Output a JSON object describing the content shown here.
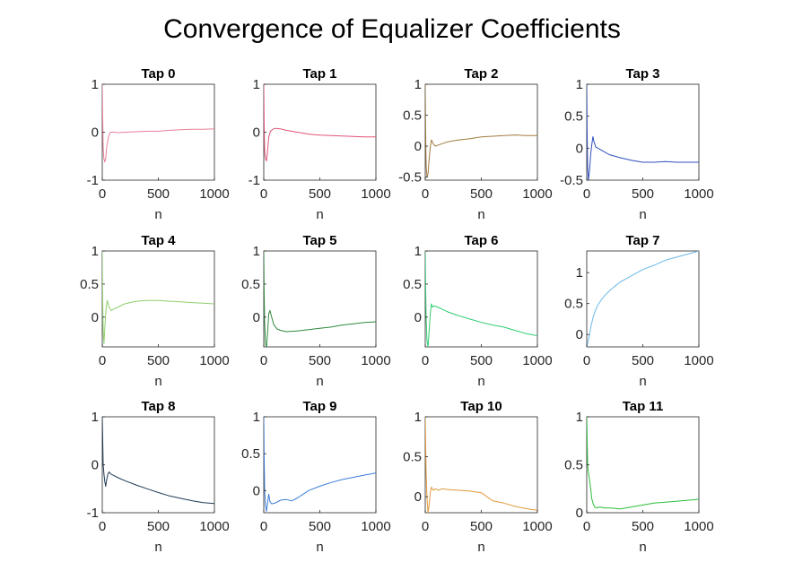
{
  "figure": {
    "title": "Convergence of Equalizer Coefficients"
  },
  "chart_data": [
    {
      "type": "line",
      "title": "Tap 0",
      "xlabel": "n",
      "ylabel": "",
      "xlim": [
        0,
        1000
      ],
      "ylim": [
        -1,
        1
      ],
      "xticks": [
        0,
        500,
        1000
      ],
      "yticks": [
        -1,
        0,
        1
      ],
      "ytick_labels": [
        "-1",
        "0",
        "1"
      ],
      "color": "#e8819a",
      "x": [
        0,
        3,
        8,
        14,
        22,
        30,
        40,
        55,
        70,
        100,
        150,
        200,
        300,
        400,
        500,
        600,
        700,
        800,
        900,
        1000
      ],
      "y": [
        1.0,
        0.4,
        -0.3,
        -0.55,
        -0.62,
        -0.55,
        -0.3,
        -0.1,
        0.0,
        0.0,
        -0.01,
        0.0,
        0.01,
        0.02,
        0.02,
        0.04,
        0.05,
        0.06,
        0.06,
        0.07
      ]
    },
    {
      "type": "line",
      "title": "Tap 1",
      "xlabel": "n",
      "ylabel": "",
      "xlim": [
        0,
        1000
      ],
      "ylim": [
        -1,
        1
      ],
      "xticks": [
        0,
        500,
        1000
      ],
      "yticks": [
        -1,
        0,
        1
      ],
      "ytick_labels": [
        "-1",
        "0",
        "1"
      ],
      "color": "#e05277",
      "x": [
        0,
        3,
        8,
        15,
        25,
        35,
        45,
        60,
        80,
        100,
        150,
        200,
        300,
        400,
        500,
        600,
        700,
        800,
        900,
        1000
      ],
      "y": [
        1.0,
        0.2,
        -0.4,
        -0.55,
        -0.6,
        -0.35,
        -0.1,
        0.02,
        0.06,
        0.08,
        0.07,
        0.04,
        0.0,
        -0.04,
        -0.06,
        -0.07,
        -0.08,
        -0.09,
        -0.1,
        -0.1
      ]
    },
    {
      "type": "line",
      "title": "Tap 2",
      "xlabel": "n",
      "ylabel": "",
      "xlim": [
        0,
        1000
      ],
      "ylim": [
        -0.55,
        1
      ],
      "xticks": [
        0,
        500,
        1000
      ],
      "yticks": [
        -0.5,
        0,
        0.5,
        1
      ],
      "ytick_labels": [
        "-0.5",
        "0",
        "0.5",
        "1"
      ],
      "color": "#a07b3f",
      "x": [
        0,
        3,
        8,
        15,
        25,
        35,
        45,
        55,
        70,
        90,
        120,
        150,
        200,
        300,
        400,
        500,
        600,
        700,
        800,
        900,
        1000
      ],
      "y": [
        1.0,
        0.3,
        -0.3,
        -0.5,
        -0.45,
        -0.2,
        -0.02,
        0.1,
        0.04,
        0.0,
        0.02,
        0.04,
        0.07,
        0.1,
        0.12,
        0.15,
        0.16,
        0.17,
        0.18,
        0.17,
        0.17
      ]
    },
    {
      "type": "line",
      "title": "Tap 3",
      "xlabel": "n",
      "ylabel": "",
      "xlim": [
        0,
        1000
      ],
      "ylim": [
        -0.5,
        1
      ],
      "xticks": [
        0,
        500,
        1000
      ],
      "yticks": [
        -0.5,
        0,
        0.5,
        1
      ],
      "ytick_labels": [
        "-0.5",
        "0",
        "0.5",
        "1"
      ],
      "color": "#2f4fbf",
      "x": [
        0,
        3,
        8,
        15,
        25,
        35,
        45,
        55,
        65,
        80,
        100,
        150,
        200,
        300,
        400,
        500,
        600,
        700,
        800,
        900,
        1000
      ],
      "y": [
        1.0,
        0.3,
        -0.3,
        -0.5,
        -0.35,
        -0.1,
        0.05,
        0.18,
        0.1,
        0.02,
        0.0,
        -0.05,
        -0.1,
        -0.15,
        -0.19,
        -0.22,
        -0.22,
        -0.21,
        -0.22,
        -0.22,
        -0.22
      ]
    },
    {
      "type": "line",
      "title": "Tap 4",
      "xlabel": "n",
      "ylabel": "",
      "xlim": [
        0,
        1000
      ],
      "ylim": [
        -0.45,
        1
      ],
      "xticks": [
        0,
        500,
        1000
      ],
      "yticks": [
        0,
        0.5,
        1
      ],
      "ytick_labels": [
        "0",
        "0.5",
        "1"
      ],
      "color": "#8fcf6e",
      "x": [
        0,
        3,
        8,
        15,
        25,
        35,
        45,
        60,
        80,
        100,
        150,
        200,
        300,
        400,
        500,
        600,
        700,
        800,
        900,
        1000
      ],
      "y": [
        1.0,
        0.3,
        -0.2,
        -0.4,
        -0.1,
        0.15,
        0.25,
        0.15,
        0.1,
        0.12,
        0.16,
        0.2,
        0.24,
        0.25,
        0.25,
        0.24,
        0.23,
        0.22,
        0.21,
        0.2
      ]
    },
    {
      "type": "line",
      "title": "Tap 5",
      "xlabel": "n",
      "ylabel": "",
      "xlim": [
        0,
        1000
      ],
      "ylim": [
        -0.45,
        1
      ],
      "xticks": [
        0,
        500,
        1000
      ],
      "yticks": [
        0,
        0.5,
        1
      ],
      "ytick_labels": [
        "0",
        "0.5",
        "1"
      ],
      "color": "#2e8b3c",
      "x": [
        0,
        3,
        8,
        15,
        25,
        35,
        45,
        55,
        70,
        90,
        120,
        150,
        200,
        300,
        400,
        500,
        600,
        700,
        800,
        900,
        1000
      ],
      "y": [
        1.0,
        0.4,
        -0.1,
        -0.4,
        -0.45,
        -0.2,
        0.05,
        0.1,
        0.0,
        -0.12,
        -0.18,
        -0.2,
        -0.22,
        -0.21,
        -0.19,
        -0.17,
        -0.15,
        -0.12,
        -0.1,
        -0.08,
        -0.07
      ]
    },
    {
      "type": "line",
      "title": "Tap 6",
      "xlabel": "n",
      "ylabel": "",
      "xlim": [
        0,
        1000
      ],
      "ylim": [
        -0.45,
        1
      ],
      "xticks": [
        0,
        500,
        1000
      ],
      "yticks": [
        0,
        0.5,
        1
      ],
      "ytick_labels": [
        "0",
        "0.5",
        "1"
      ],
      "color": "#2ecc71",
      "x": [
        0,
        3,
        8,
        15,
        25,
        35,
        45,
        55,
        65,
        80,
        100,
        150,
        200,
        300,
        400,
        500,
        600,
        700,
        800,
        900,
        1000
      ],
      "y": [
        1.0,
        0.5,
        0.0,
        -0.35,
        -0.45,
        -0.2,
        0.05,
        0.2,
        0.15,
        0.17,
        0.16,
        0.12,
        0.08,
        0.02,
        -0.03,
        -0.08,
        -0.12,
        -0.15,
        -0.2,
        -0.25,
        -0.28
      ]
    },
    {
      "type": "line",
      "title": "Tap 7",
      "xlabel": "n",
      "ylabel": "",
      "xlim": [
        0,
        1000
      ],
      "ylim": [
        -0.2,
        1.35
      ],
      "xticks": [
        0,
        500,
        1000
      ],
      "yticks": [
        0,
        0.5,
        1
      ],
      "ytick_labels": [
        "0",
        "0.5",
        "1"
      ],
      "color": "#6bb8e8",
      "x": [
        0,
        20,
        40,
        60,
        80,
        100,
        130,
        160,
        200,
        250,
        300,
        350,
        400,
        500,
        600,
        700,
        800,
        900,
        1000
      ],
      "y": [
        -0.2,
        -0.05,
        0.15,
        0.3,
        0.4,
        0.48,
        0.56,
        0.63,
        0.7,
        0.78,
        0.85,
        0.9,
        0.95,
        1.05,
        1.12,
        1.2,
        1.25,
        1.3,
        1.35
      ]
    },
    {
      "type": "line",
      "title": "Tap 8",
      "xlabel": "n",
      "ylabel": "",
      "xlim": [
        0,
        1000
      ],
      "ylim": [
        -1,
        1
      ],
      "xticks": [
        0,
        500,
        1000
      ],
      "yticks": [
        -1,
        0,
        1
      ],
      "ytick_labels": [
        "-1",
        "0",
        "1"
      ],
      "color": "#1f3b57",
      "x": [
        0,
        3,
        8,
        15,
        22,
        30,
        40,
        50,
        60,
        80,
        100,
        150,
        200,
        300,
        400,
        500,
        600,
        700,
        800,
        900,
        1000
      ],
      "y": [
        1.0,
        0.6,
        0.0,
        -0.2,
        -0.35,
        -0.45,
        -0.3,
        -0.2,
        -0.15,
        -0.2,
        -0.22,
        -0.28,
        -0.33,
        -0.42,
        -0.5,
        -0.58,
        -0.65,
        -0.7,
        -0.75,
        -0.79,
        -0.81
      ]
    },
    {
      "type": "line",
      "title": "Tap 9",
      "xlabel": "n",
      "ylabel": "",
      "xlim": [
        0,
        1000
      ],
      "ylim": [
        -0.3,
        1
      ],
      "xticks": [
        0,
        500,
        1000
      ],
      "yticks": [
        0,
        0.5,
        1
      ],
      "ytick_labels": [
        "0",
        "0.5",
        "1"
      ],
      "color": "#3a7dd8",
      "x": [
        0,
        3,
        8,
        15,
        25,
        35,
        45,
        55,
        70,
        100,
        150,
        200,
        250,
        300,
        350,
        400,
        500,
        600,
        700,
        800,
        900,
        1000
      ],
      "y": [
        1.0,
        0.5,
        0.0,
        -0.2,
        -0.28,
        -0.15,
        -0.05,
        -0.15,
        -0.18,
        -0.17,
        -0.13,
        -0.12,
        -0.14,
        -0.1,
        -0.05,
        0.0,
        0.06,
        0.11,
        0.15,
        0.18,
        0.21,
        0.24
      ]
    },
    {
      "type": "line",
      "title": "Tap 10",
      "xlabel": "n",
      "ylabel": "",
      "xlim": [
        0,
        1000
      ],
      "ylim": [
        -0.2,
        1
      ],
      "xticks": [
        0,
        500,
        1000
      ],
      "yticks": [
        0,
        0.5,
        1
      ],
      "ytick_labels": [
        "0",
        "0.5",
        "1"
      ],
      "color": "#e09a3a",
      "x": [
        0,
        3,
        8,
        15,
        25,
        35,
        45,
        55,
        70,
        90,
        120,
        150,
        200,
        300,
        400,
        500,
        550,
        600,
        700,
        800,
        900,
        1000
      ],
      "y": [
        1.0,
        0.7,
        0.3,
        0.0,
        -0.2,
        -0.1,
        0.05,
        0.12,
        0.08,
        0.1,
        0.08,
        0.1,
        0.09,
        0.08,
        0.07,
        0.05,
        0.0,
        -0.05,
        -0.08,
        -0.12,
        -0.15,
        -0.17
      ]
    },
    {
      "type": "line",
      "title": "Tap 11",
      "xlabel": "n",
      "ylabel": "",
      "xlim": [
        0,
        1000
      ],
      "ylim": [
        0,
        1
      ],
      "xticks": [
        0,
        500,
        1000
      ],
      "yticks": [
        0,
        0.5,
        1
      ],
      "ytick_labels": [
        "0",
        "0.5",
        "1"
      ],
      "color": "#2bbf3a",
      "x": [
        0,
        3,
        8,
        15,
        25,
        35,
        45,
        55,
        70,
        90,
        120,
        150,
        200,
        300,
        400,
        500,
        600,
        700,
        800,
        900,
        1000
      ],
      "y": [
        1.0,
        0.8,
        0.5,
        0.42,
        0.35,
        0.25,
        0.15,
        0.1,
        0.06,
        0.05,
        0.06,
        0.05,
        0.05,
        0.04,
        0.06,
        0.08,
        0.1,
        0.11,
        0.12,
        0.13,
        0.14
      ]
    }
  ]
}
